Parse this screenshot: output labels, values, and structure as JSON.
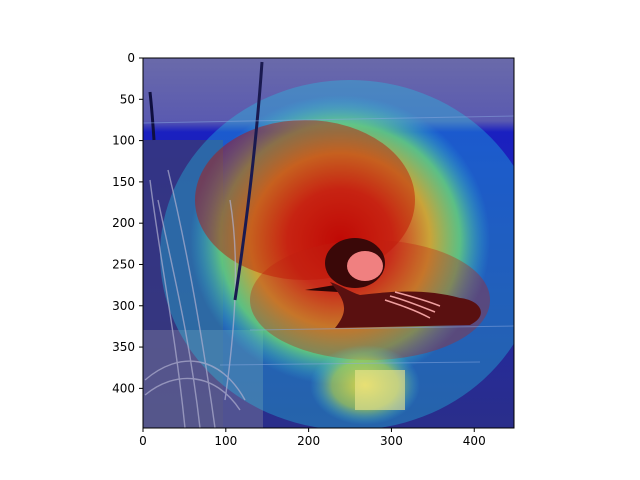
{
  "chart_data": {
    "type": "heatmap",
    "title": "",
    "xlabel": "",
    "ylabel": "",
    "xlim": [
      0,
      448
    ],
    "ylim": [
      448,
      0
    ],
    "x_ticks": [
      0,
      100,
      200,
      300,
      400
    ],
    "y_ticks": [
      0,
      50,
      100,
      150,
      200,
      250,
      300,
      350,
      400
    ],
    "colormap": "jet",
    "image_content": "hooded-merganser-duck-on-water-with-reeds",
    "hotspots": [
      {
        "x": 250,
        "y": 210,
        "intensity": 1.0
      },
      {
        "x": 200,
        "y": 300,
        "intensity": 0.9
      },
      {
        "x": 300,
        "y": 160,
        "intensity": 0.8
      },
      {
        "x": 250,
        "y": 390,
        "intensity": 0.6
      }
    ]
  }
}
